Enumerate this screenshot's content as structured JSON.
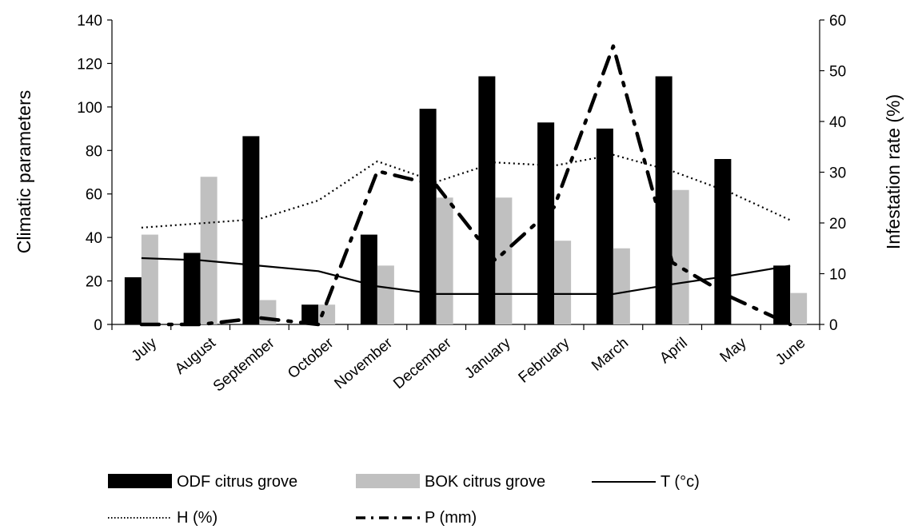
{
  "chart_data": {
    "type": "bar",
    "categories": [
      "July",
      "August",
      "September",
      "October",
      "November",
      "December",
      "January",
      "February",
      "March",
      "April",
      "May",
      "June"
    ],
    "ylabel": "Climatic parameters",
    "ylabel_right": "Infestation rate (%)",
    "ylim": [
      0,
      140
    ],
    "ylim_right": [
      0,
      60
    ],
    "yticks": [
      "0",
      "20",
      "40",
      "60",
      "80",
      "100",
      "120",
      "140"
    ],
    "yticks_right": [
      "0",
      "10",
      "20",
      "30",
      "40",
      "50",
      "60"
    ],
    "legend_position": "bottom",
    "bar_series": [
      {
        "name": "ODF citrus grove",
        "axis": "right",
        "color": "#000000",
        "values": [
          9.3,
          14.1,
          37.1,
          3.9,
          17.7,
          42.5,
          48.9,
          39.8,
          38.6,
          48.9,
          32.6,
          11.6
        ]
      },
      {
        "name": "BOK citrus grove",
        "axis": "right",
        "color": "#c0c0c0",
        "values": [
          17.7,
          29.1,
          4.8,
          3.9,
          11.6,
          25.0,
          25.0,
          16.5,
          15.0,
          26.5,
          0,
          6.2
        ]
      }
    ],
    "line_series": [
      {
        "name": "T (°c)",
        "axis": "left",
        "style": "solid",
        "values": [
          30.5,
          29.5,
          27.0,
          24.5,
          17.5,
          14.0,
          14.0,
          14.0,
          14.0,
          18.5,
          22.5,
          27.0
        ]
      },
      {
        "name": "H (%)",
        "axis": "left",
        "style": "dotted",
        "values": [
          44.5,
          46.5,
          48.5,
          57.0,
          75.0,
          65.5,
          74.5,
          73.0,
          78.0,
          70.5,
          60.5,
          48.0
        ]
      },
      {
        "name": "P (mm)",
        "axis": "left",
        "style": "dashdot",
        "values": [
          0,
          0,
          3.0,
          0,
          70.5,
          64.0,
          29.5,
          54.0,
          128.0,
          28.5,
          12.5,
          0
        ]
      }
    ]
  }
}
